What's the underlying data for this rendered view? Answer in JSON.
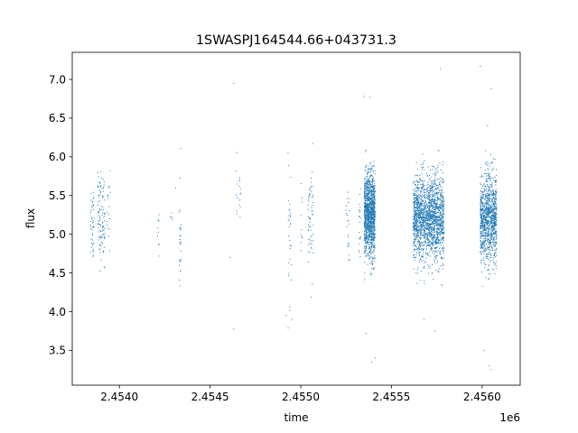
{
  "chart_data": {
    "type": "scatter",
    "title": "1SWASPJ164544.66+043731.3",
    "xlabel": "time",
    "ylabel": "flux",
    "x_offset_label": "1e6",
    "xlim": [
      2.45374,
      2.45621
    ],
    "ylim": [
      3.05,
      7.35
    ],
    "x_ticks": [
      2.454,
      2.4545,
      2.455,
      2.4555,
      2.456
    ],
    "x_tick_labels": [
      "2.4540",
      "2.4545",
      "2.4550",
      "2.4555",
      "2.4560"
    ],
    "y_ticks": [
      3.5,
      4.0,
      4.5,
      5.0,
      5.5,
      6.0,
      6.5,
      7.0
    ],
    "y_tick_labels": [
      "3.5",
      "4.0",
      "4.5",
      "5.0",
      "5.5",
      "6.0",
      "6.5",
      "7.0"
    ],
    "grid": false,
    "marker_color": "#1f77b4",
    "observation_clusters": [
      {
        "x_start": 2.45384,
        "x_end": 2.45386,
        "y_center": 5.2,
        "y_spread": 0.38,
        "n": 45
      },
      {
        "x_start": 2.45388,
        "x_end": 2.45392,
        "y_center": 5.2,
        "y_spread": 0.4,
        "n": 110
      },
      {
        "x_start": 2.45393,
        "x_end": 2.45395,
        "y_center": 5.35,
        "y_spread": 0.35,
        "n": 18
      },
      {
        "x_start": 2.45421,
        "x_end": 2.45422,
        "y_center": 5.1,
        "y_spread": 0.3,
        "n": 10
      },
      {
        "x_start": 2.45428,
        "x_end": 2.45429,
        "y_center": 5.2,
        "y_spread": 0.05,
        "n": 4
      },
      {
        "x_start": 2.45433,
        "x_end": 2.45434,
        "y_center": 5.0,
        "y_spread": 0.55,
        "n": 28
      },
      {
        "x_start": 2.45464,
        "x_end": 2.45467,
        "y_center": 5.5,
        "y_spread": 0.3,
        "n": 18
      },
      {
        "x_start": 2.45493,
        "x_end": 2.45495,
        "y_center": 5.0,
        "y_spread": 0.55,
        "n": 30
      },
      {
        "x_start": 2.455,
        "x_end": 2.45501,
        "y_center": 5.1,
        "y_spread": 0.35,
        "n": 10
      },
      {
        "x_start": 2.45504,
        "x_end": 2.45507,
        "y_center": 5.2,
        "y_spread": 0.5,
        "n": 60
      },
      {
        "x_start": 2.45525,
        "x_end": 2.45527,
        "y_center": 5.0,
        "y_spread": 0.45,
        "n": 22
      },
      {
        "x_start": 2.45532,
        "x_end": 2.45533,
        "y_center": 5.1,
        "y_spread": 0.45,
        "n": 20
      },
      {
        "x_start": 2.45535,
        "x_end": 2.45541,
        "y_center": 5.25,
        "y_spread": 0.38,
        "n": 1300
      },
      {
        "x_start": 2.45562,
        "x_end": 2.45571,
        "y_center": 5.2,
        "y_spread": 0.38,
        "n": 1000
      },
      {
        "x_start": 2.45571,
        "x_end": 2.45579,
        "y_center": 5.2,
        "y_spread": 0.4,
        "n": 900
      },
      {
        "x_start": 2.45599,
        "x_end": 2.45608,
        "y_center": 5.2,
        "y_spread": 0.4,
        "n": 1100
      }
    ],
    "outliers": [
      {
        "x": 2.45431,
        "y": 5.6
      },
      {
        "x": 2.45463,
        "y": 6.95
      },
      {
        "x": 2.45463,
        "y": 3.78
      },
      {
        "x": 2.45461,
        "y": 4.7
      },
      {
        "x": 2.45492,
        "y": 3.95
      },
      {
        "x": 2.45495,
        "y": 3.9
      },
      {
        "x": 2.45535,
        "y": 6.78
      },
      {
        "x": 2.45538,
        "y": 6.77
      },
      {
        "x": 2.45536,
        "y": 3.72
      },
      {
        "x": 2.45541,
        "y": 3.4
      },
      {
        "x": 2.45539,
        "y": 3.35
      },
      {
        "x": 2.45577,
        "y": 7.14
      },
      {
        "x": 2.45568,
        "y": 3.9
      },
      {
        "x": 2.45574,
        "y": 3.75
      },
      {
        "x": 2.45599,
        "y": 7.17
      },
      {
        "x": 2.45605,
        "y": 6.88
      },
      {
        "x": 2.45604,
        "y": 3.3
      },
      {
        "x": 2.45605,
        "y": 3.25
      },
      {
        "x": 2.45601,
        "y": 3.5
      },
      {
        "x": 2.45603,
        "y": 6.4
      }
    ]
  }
}
